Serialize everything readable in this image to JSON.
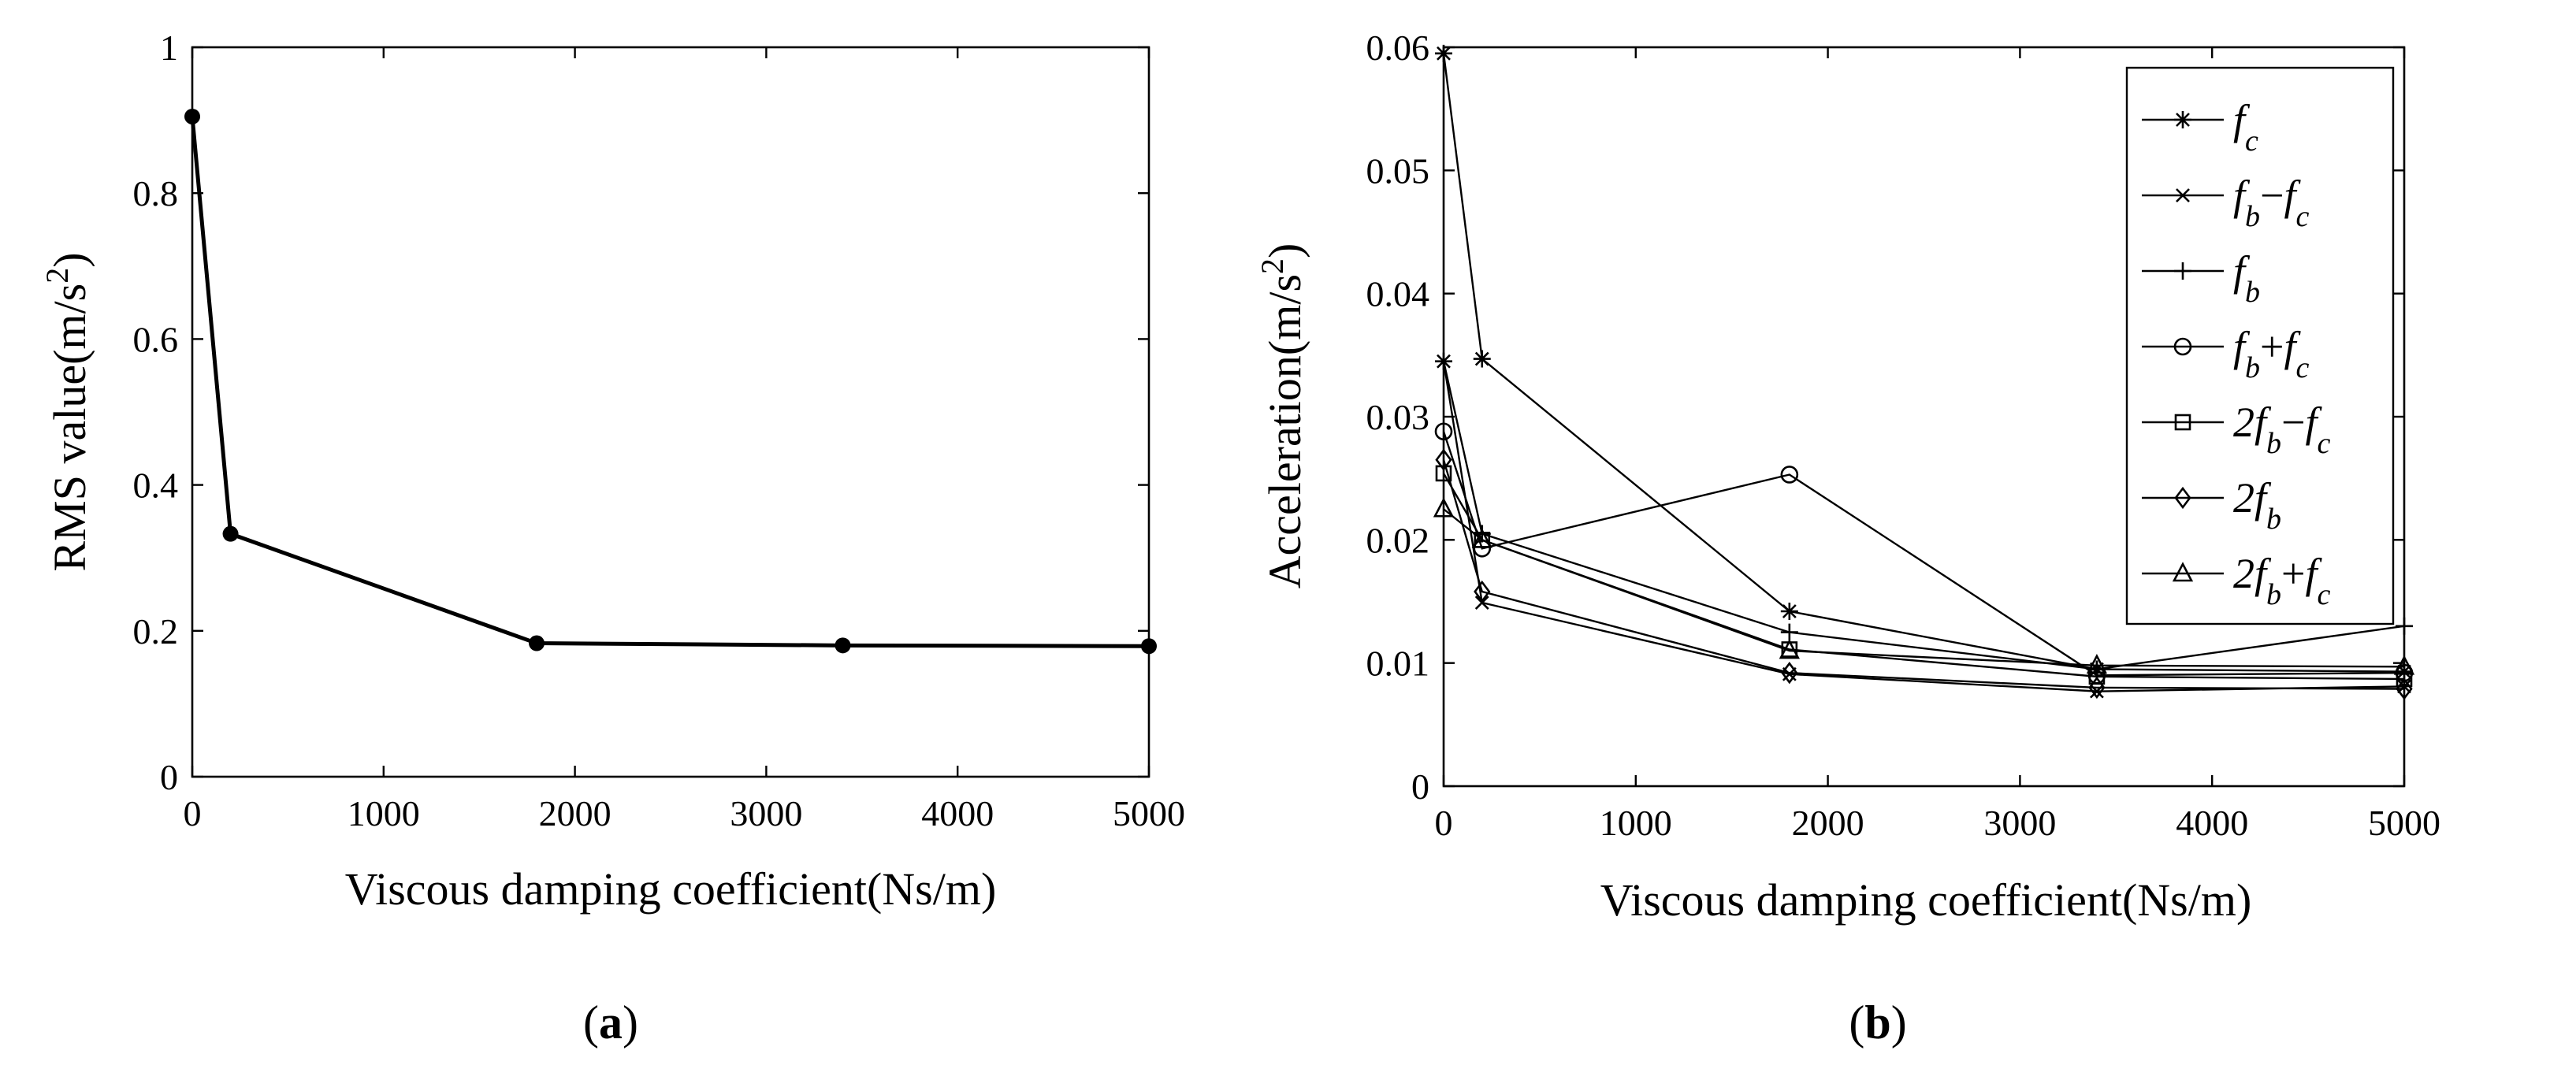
{
  "figure": {
    "panel_a": {
      "open": "(",
      "letter": "a",
      "close": ")"
    },
    "panel_b": {
      "open": "(",
      "letter": "b",
      "close": ")"
    }
  },
  "chart_data": [
    {
      "type": "line",
      "title": "",
      "xlabel": "Viscous damping coefficient(Ns/m)",
      "ylabel": {
        "prefix": "RMS value(m/s",
        "sup": "2",
        "suffix": ")"
      },
      "xlim": [
        0,
        5000
      ],
      "ylim": [
        0,
        1
      ],
      "xticks": [
        0,
        1000,
        2000,
        3000,
        4000,
        5000
      ],
      "yticks": [
        0,
        0.2,
        0.4,
        0.6,
        0.8,
        1
      ],
      "ytick_labels": [
        "0",
        "0.2",
        "0.4",
        "0.6",
        "0.8",
        "1"
      ],
      "grid": false,
      "series": [
        {
          "name": "RMS value",
          "marker": "dot",
          "x": [
            0,
            200,
            1800,
            3400,
            5000
          ],
          "values": [
            0.905,
            0.333,
            0.183,
            0.18,
            0.179
          ]
        }
      ]
    },
    {
      "type": "line",
      "title": "",
      "xlabel": "Viscous damping coefficient(Ns/m)",
      "ylabel": {
        "prefix": "Acceleration(m/s",
        "sup": "2",
        "suffix": ")"
      },
      "xlim": [
        0,
        5000
      ],
      "ylim": [
        0,
        0.06
      ],
      "xticks": [
        0,
        1000,
        2000,
        3000,
        4000,
        5000
      ],
      "yticks": [
        0,
        0.01,
        0.02,
        0.03,
        0.04,
        0.05,
        0.06
      ],
      "ytick_labels": [
        "0",
        "0.01",
        "0.02",
        "0.03",
        "0.04",
        "0.05",
        "0.06"
      ],
      "grid": false,
      "legend_position": "top-right",
      "x": [
        0,
        200,
        1800,
        3400,
        5000
      ],
      "series": [
        {
          "name": "f_c",
          "marker": "asterisk",
          "values": [
            0.0595,
            0.0347,
            0.0142,
            0.0095,
            0.0093
          ],
          "label": {
            "a": "f",
            "a_sub": "c",
            "op": "",
            "b": "",
            "b_sub": ""
          }
        },
        {
          "name": "f_b-f_c",
          "marker": "x",
          "values": [
            0.0345,
            0.0149,
            0.0091,
            0.0077,
            0.0081
          ],
          "label": {
            "a": "f",
            "a_sub": "b",
            "op": "−",
            "b": "f",
            "b_sub": "c"
          }
        },
        {
          "name": "f_b",
          "marker": "plus",
          "values": [
            0.0345,
            0.0205,
            0.0125,
            0.0095,
            0.013
          ],
          "label": {
            "a": "f",
            "a_sub": "b",
            "op": "",
            "b": "",
            "b_sub": ""
          }
        },
        {
          "name": "f_b+f_c",
          "marker": "circle",
          "values": [
            0.0288,
            0.0193,
            0.0253,
            0.009,
            0.0092
          ],
          "label": {
            "a": "f",
            "a_sub": "b",
            "op": "+",
            "b": "f",
            "b_sub": "c"
          }
        },
        {
          "name": "2f_b-f_c",
          "marker": "square",
          "values": [
            0.0254,
            0.02,
            0.0111,
            0.0089,
            0.0087
          ],
          "label": {
            "a": "2f",
            "a_sub": "b",
            "op": "−",
            "b": "f",
            "b_sub": "c"
          }
        },
        {
          "name": "2f_b",
          "marker": "diamond",
          "values": [
            0.0265,
            0.0158,
            0.0092,
            0.008,
            0.0079
          ],
          "label": {
            "a": "2f",
            "a_sub": "b",
            "op": "",
            "b": "",
            "b_sub": ""
          }
        },
        {
          "name": "2f_b+f_c",
          "marker": "triangle",
          "values": [
            0.0225,
            0.02,
            0.011,
            0.0098,
            0.0097
          ],
          "label": {
            "a": "2f",
            "a_sub": "b",
            "op": "+",
            "b": "f",
            "b_sub": "c"
          }
        }
      ]
    }
  ]
}
